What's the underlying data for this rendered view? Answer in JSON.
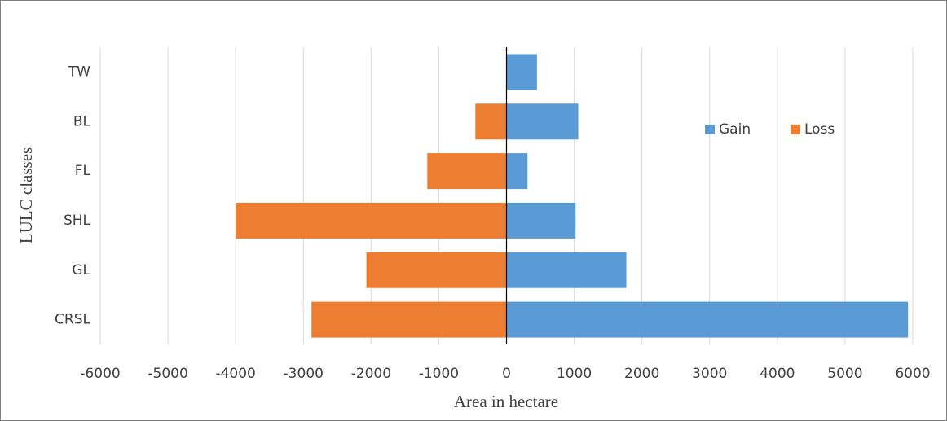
{
  "chart_data": {
    "type": "hbar",
    "x_label": "Area in hectare",
    "y_label": "LULC classes",
    "categories": [
      "TW",
      "BL",
      "FL",
      "SHL",
      "GL",
      "CRSL"
    ],
    "series": [
      {
        "name": "Gain",
        "color": "#5b9bd5",
        "values": [
          450,
          1060,
          310,
          1020,
          1770,
          5930
        ]
      },
      {
        "name": "Loss",
        "color": "#ed7d31",
        "values": [
          0,
          -460,
          -1170,
          -4000,
          -2070,
          -2880
        ]
      }
    ],
    "xlim": [
      -6000,
      6000
    ],
    "xticks": [
      -6000,
      -5000,
      -4000,
      -3000,
      -2000,
      -1000,
      0,
      1000,
      2000,
      3000,
      4000,
      5000,
      6000
    ],
    "grid": true,
    "legend_position": "upper right"
  }
}
